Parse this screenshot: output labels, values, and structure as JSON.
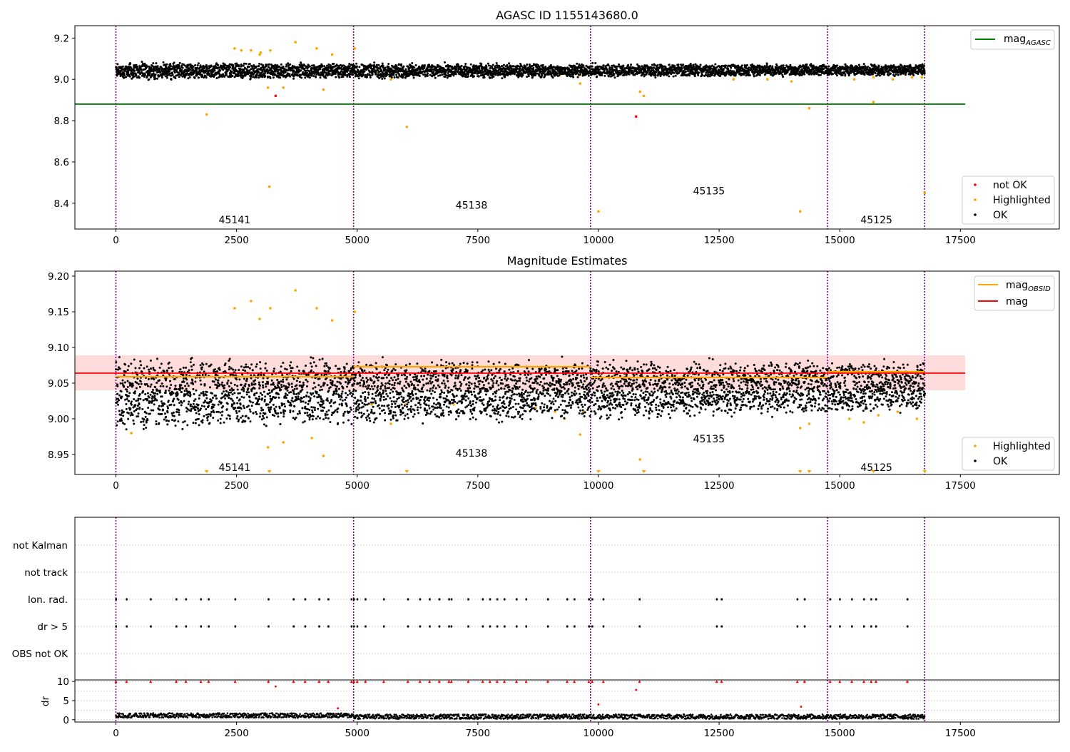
{
  "colors": {
    "ok": "#000000",
    "highlighted": "#ffa500",
    "not_ok": "#ff0000",
    "mag_agasc": "#008000",
    "mag_obsid": "#ffa500",
    "mag": "#ff0000",
    "band": "#ffc0c0",
    "obs_divider": "#800080",
    "grid": "#b0b0b0"
  },
  "chart_data": [
    {
      "type": "scatter",
      "title": "AGASC ID 1155143680.0",
      "xlabel": "",
      "ylabel": "",
      "xlim": [
        -850,
        19550
      ],
      "ylim": [
        8.275,
        9.26
      ],
      "xticks": [
        0,
        2500,
        5000,
        7500,
        10000,
        12500,
        15000,
        17500
      ],
      "xtick_labels": [
        "0",
        "2500",
        "5000",
        "7500",
        "10000",
        "12500",
        "15000",
        "17500"
      ],
      "yticks": [
        8.4,
        8.6,
        8.8,
        9.0,
        9.2
      ],
      "ytick_labels": [
        "8.4",
        "8.6",
        "8.8",
        "9.0",
        "9.2"
      ],
      "obs_boundaries": [
        0,
        4925,
        9835,
        14750,
        16760
      ],
      "obsids": [
        {
          "label": "45141",
          "x": 2460,
          "y": 8.32
        },
        {
          "label": "45138",
          "x": 7370,
          "y": 8.39
        },
        {
          "label": "45135",
          "x": 12290,
          "y": 8.46
        },
        {
          "label": "45125",
          "x": 15760,
          "y": 8.32
        }
      ],
      "lines": [
        {
          "name": "mag_AGASC",
          "y": 8.88,
          "x": [
            -850,
            17600
          ],
          "color": "#008000"
        }
      ],
      "ok_band": {
        "upper_start": 9.08,
        "upper_end": 9.07,
        "lower_start": 9.0,
        "lower_end": 9.02,
        "noise": 0.016
      },
      "highlighted": [
        [
          1880,
          8.83
        ],
        [
          3180,
          8.48
        ],
        [
          3150,
          8.96
        ],
        [
          3470,
          8.96
        ],
        [
          3720,
          9.18
        ],
        [
          4300,
          8.95
        ],
        [
          5400,
          9.03
        ],
        [
          5700,
          9.0
        ],
        [
          6030,
          8.77
        ],
        [
          9620,
          8.98
        ],
        [
          10000,
          8.36
        ],
        [
          10860,
          8.94
        ],
        [
          10940,
          8.92
        ],
        [
          14180,
          8.36
        ],
        [
          14370,
          8.86
        ],
        [
          15700,
          8.89
        ],
        [
          16760,
          8.45
        ],
        [
          2460,
          9.15
        ],
        [
          2800,
          9.14
        ],
        [
          2980,
          9.12
        ],
        [
          4160,
          9.15
        ],
        [
          4480,
          9.12
        ],
        [
          4950,
          9.15
        ],
        [
          7000,
          9.03
        ],
        [
          7900,
          9.03
        ],
        [
          9200,
          9.02
        ],
        [
          9600,
          9.02
        ],
        [
          12800,
          9.0
        ],
        [
          13500,
          9.0
        ],
        [
          14000,
          8.99
        ],
        [
          15300,
          9.0
        ],
        [
          15700,
          9.01
        ],
        [
          16100,
          9.0
        ],
        [
          16500,
          9.01
        ],
        [
          16700,
          9.01
        ],
        [
          3000,
          9.13
        ],
        [
          2600,
          9.14
        ],
        [
          3200,
          9.14
        ]
      ],
      "not_ok": [
        [
          3310,
          8.92
        ],
        [
          10780,
          8.82
        ]
      ],
      "legend": [
        {
          "label": "mag",
          "subscript": "AGASC"
        },
        {
          "label": "not OK"
        },
        {
          "label": "Highlighted"
        },
        {
          "label": "OK"
        }
      ]
    },
    {
      "type": "scatter",
      "title": "Magnitude Estimates",
      "xlabel": "",
      "ylabel": "",
      "xlim": [
        -850,
        19550
      ],
      "ylim": [
        8.922,
        9.207
      ],
      "xticks": [
        0,
        2500,
        5000,
        7500,
        10000,
        12500,
        15000,
        17500
      ],
      "xtick_labels": [
        "0",
        "2500",
        "5000",
        "7500",
        "10000",
        "12500",
        "15000",
        "17500"
      ],
      "yticks": [
        8.95,
        9.0,
        9.05,
        9.1,
        9.15,
        9.2
      ],
      "ytick_labels": [
        "8.95",
        "9.00",
        "9.05",
        "9.10",
        "9.15",
        "9.20"
      ],
      "obs_boundaries": [
        0,
        4925,
        9835,
        14750,
        16760
      ],
      "obsids": [
        {
          "label": "45141",
          "x": 2460,
          "y": 8.932
        },
        {
          "label": "45138",
          "x": 7370,
          "y": 8.952
        },
        {
          "label": "45135",
          "x": 12290,
          "y": 8.972
        },
        {
          "label": "45125",
          "x": 15760,
          "y": 8.932
        }
      ],
      "mag": 9.064,
      "mag_band": [
        9.04,
        9.089
      ],
      "mag_band_x": [
        -850,
        17600
      ],
      "mag_obsid_segments": [
        {
          "x": [
            0,
            4925
          ],
          "y": 9.059
        },
        {
          "x": [
            4925,
            9835
          ],
          "y": 9.073
        },
        {
          "x": [
            9835,
            14750
          ],
          "y": 9.058
        },
        {
          "x": [
            14750,
            16760
          ],
          "y": 9.066
        }
      ],
      "ok_band": {
        "upper_start": 9.085,
        "upper_end": 9.08,
        "lower_start": 8.985,
        "lower_end": 9.01,
        "noise": 0.012
      },
      "highlighted": [
        [
          320,
          8.98
        ],
        [
          3150,
          8.96
        ],
        [
          3470,
          8.967
        ],
        [
          4060,
          8.973
        ],
        [
          4300,
          8.948
        ],
        [
          5700,
          8.993
        ],
        [
          9620,
          8.978
        ],
        [
          10860,
          8.943
        ],
        [
          14180,
          8.987
        ],
        [
          14370,
          8.993
        ],
        [
          2460,
          9.155
        ],
        [
          2800,
          9.165
        ],
        [
          2980,
          9.14
        ],
        [
          3200,
          9.155
        ],
        [
          3720,
          9.18
        ],
        [
          4160,
          9.155
        ],
        [
          4480,
          9.138
        ],
        [
          4950,
          9.15
        ],
        [
          5300,
          9.02
        ],
        [
          6000,
          9.02
        ],
        [
          7000,
          9.02
        ],
        [
          7700,
          9.02
        ],
        [
          8700,
          9.015
        ],
        [
          9100,
          9.01
        ],
        [
          9300,
          9.0
        ],
        [
          9700,
          9.01
        ],
        [
          15200,
          9.0
        ],
        [
          15500,
          8.995
        ],
        [
          15800,
          9.005
        ],
        [
          16200,
          9.01
        ],
        [
          16600,
          9.0
        ]
      ],
      "clipped_low": [
        1880,
        3180,
        6030,
        10000,
        10940,
        14180,
        14370,
        15700,
        16760
      ],
      "legend": [
        {
          "label": "mag",
          "subscript": "OBSID"
        },
        {
          "label": "mag"
        },
        {
          "label": "Highlighted"
        },
        {
          "label": "OK"
        }
      ]
    },
    {
      "type": "scatter",
      "title": "",
      "xlabel": "",
      "ylabel": "",
      "xlim": [
        -850,
        19550
      ],
      "flag_rows": [
        "not Kalman",
        "not track",
        "Ion. rad.",
        "dr > 5",
        "OBS not OK"
      ],
      "flag_events": [
        0,
        220,
        720,
        1250,
        1450,
        1760,
        1920,
        2470,
        3160,
        3680,
        3920,
        4210,
        4400,
        4880,
        4930,
        5000,
        5170,
        5550,
        6050,
        6300,
        6500,
        6700,
        6900,
        6950,
        7300,
        7600,
        7750,
        7900,
        8050,
        8300,
        8500,
        8950,
        9350,
        9500,
        9800,
        9870,
        10100,
        10850,
        12450,
        12550,
        14120,
        14270,
        14800,
        15000,
        15250,
        15500,
        15650,
        15750,
        16400
      ],
      "not_kalman_events": [
        4950
      ],
      "obs_boundaries": [
        0,
        4925,
        9835,
        14750,
        16760
      ]
    },
    {
      "type": "scatter",
      "title": "",
      "xlabel": "",
      "ylabel": "dr",
      "xlim": [
        -850,
        19550
      ],
      "ylim": [
        -0.6,
        10.4
      ],
      "yticks": [
        0,
        5,
        10
      ],
      "ytick_labels": [
        "0",
        "5",
        "10"
      ],
      "xticks": [
        0,
        2500,
        5000,
        7500,
        10000,
        12500,
        15000,
        17500
      ],
      "xtick_labels": [
        "0",
        "2500",
        "5000",
        "7500",
        "10000",
        "12500",
        "15000",
        "17500"
      ],
      "obs_boundaries": [
        0,
        4925,
        9835,
        14750,
        16760
      ],
      "dr_extremes": [
        [
          3310,
          8.7
        ],
        [
          10780,
          7.8
        ],
        [
          10000,
          4.0
        ],
        [
          14200,
          3.4
        ],
        [
          4600,
          3.0
        ]
      ]
    }
  ]
}
